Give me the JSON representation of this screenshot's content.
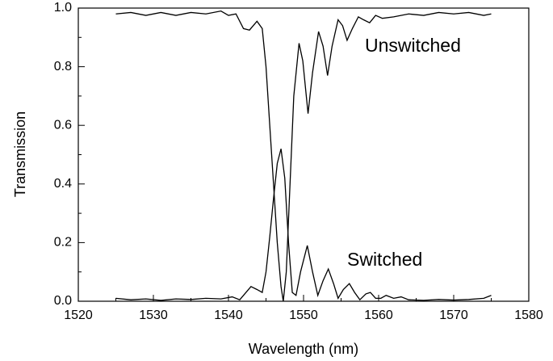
{
  "chart_data": {
    "type": "line",
    "x_label": "Wavelength (nm)",
    "y_label": "Transmission",
    "xlim": [
      1520,
      1580
    ],
    "ylim": [
      0,
      1
    ],
    "xticks": [
      1520,
      1530,
      1540,
      1550,
      1560,
      1570,
      1580
    ],
    "yticks": [
      {
        "value": 0,
        "label": "0.0"
      },
      0.2,
      0.4,
      0.6,
      0.8,
      {
        "value": 1,
        "label": "1.0"
      }
    ],
    "annotations": [
      "Unswitched",
      "Switched"
    ],
    "series": [
      {
        "name": "Unswitched",
        "color": "#000000",
        "x": [
          1525,
          1527,
          1529,
          1531,
          1533,
          1535,
          1537,
          1539,
          1540,
          1541,
          1542,
          1542.8,
          1543.8,
          1544.5,
          1545,
          1545.5,
          1546,
          1546.5,
          1547,
          1547.3,
          1547.7,
          1548.2,
          1548.7,
          1549.4,
          1549.9,
          1550.6,
          1551.2,
          1552,
          1552.6,
          1553.2,
          1553.8,
          1554.6,
          1555.2,
          1555.8,
          1556.5,
          1557.3,
          1558,
          1558.8,
          1559.6,
          1560.5,
          1562,
          1564,
          1566,
          1568,
          1570,
          1572,
          1574,
          1575
        ],
        "values": [
          0.98,
          0.985,
          0.975,
          0.985,
          0.975,
          0.985,
          0.98,
          0.99,
          0.975,
          0.98,
          0.93,
          0.925,
          0.955,
          0.93,
          0.8,
          0.6,
          0.4,
          0.2,
          0.05,
          0.0,
          0.1,
          0.4,
          0.7,
          0.88,
          0.82,
          0.64,
          0.78,
          0.92,
          0.87,
          0.77,
          0.87,
          0.96,
          0.94,
          0.89,
          0.93,
          0.97,
          0.96,
          0.95,
          0.975,
          0.965,
          0.97,
          0.98,
          0.975,
          0.985,
          0.98,
          0.985,
          0.975,
          0.98
        ]
      },
      {
        "name": "Switched",
        "color": "#000000",
        "x": [
          1525,
          1527,
          1529,
          1531,
          1533,
          1535,
          1537,
          1539,
          1540.5,
          1541.5,
          1543,
          1543.8,
          1544.5,
          1545,
          1545.5,
          1546,
          1546.5,
          1547,
          1547.5,
          1548,
          1548.5,
          1549,
          1549.6,
          1550.5,
          1551.2,
          1551.9,
          1552.6,
          1553.3,
          1554,
          1554.6,
          1555.3,
          1556.1,
          1556.8,
          1557.5,
          1558.3,
          1558.9,
          1559.6,
          1560.3,
          1561,
          1562,
          1563,
          1564,
          1566,
          1568,
          1570,
          1572,
          1574,
          1575
        ],
        "values": [
          0.01,
          0.005,
          0.008,
          0.003,
          0.008,
          0.006,
          0.01,
          0.008,
          0.015,
          0.005,
          0.05,
          0.04,
          0.03,
          0.1,
          0.22,
          0.35,
          0.47,
          0.52,
          0.42,
          0.2,
          0.03,
          0.02,
          0.1,
          0.19,
          0.1,
          0.02,
          0.07,
          0.11,
          0.06,
          0.01,
          0.04,
          0.06,
          0.03,
          0.005,
          0.025,
          0.03,
          0.01,
          0.01,
          0.02,
          0.01,
          0.015,
          0.005,
          0.003,
          0.006,
          0.004,
          0.006,
          0.01,
          0.02
        ]
      }
    ]
  }
}
